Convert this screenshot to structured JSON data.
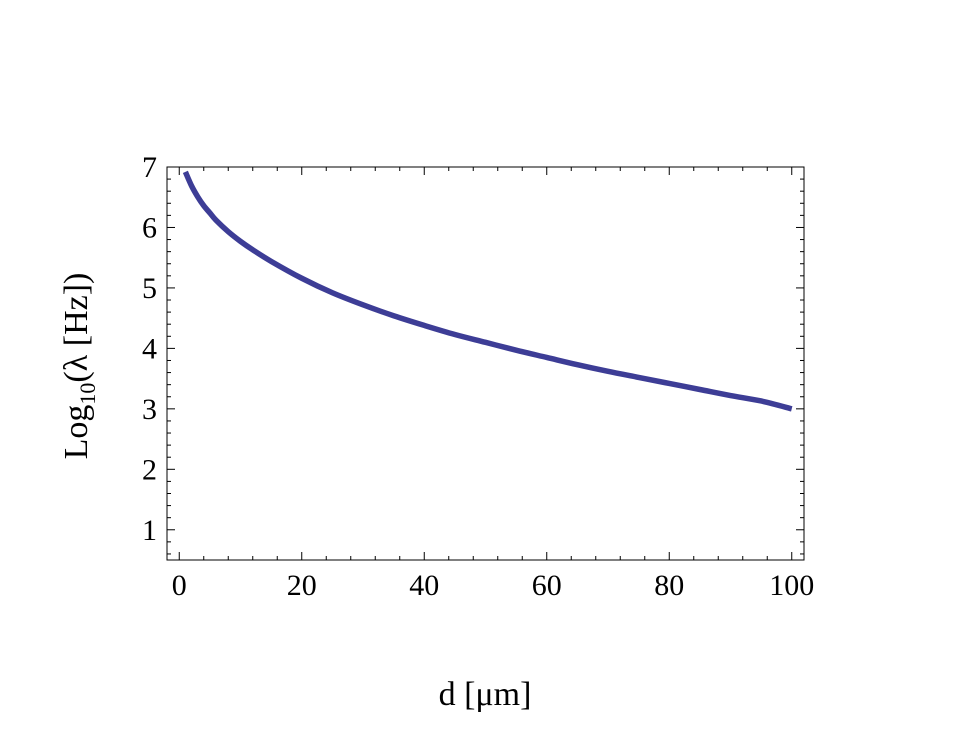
{
  "chart_data": {
    "type": "line",
    "title": "",
    "xlabel": "d [μm]",
    "ylabel": {
      "prefix": "Log",
      "subscript": "10",
      "suffix": "(λ [Hz])"
    },
    "xlim": [
      -2,
      102
    ],
    "ylim": [
      0.5,
      7
    ],
    "x_ticks": [
      0,
      20,
      40,
      60,
      80,
      100
    ],
    "x_tick_labels": [
      "0",
      "20",
      "40",
      "60",
      "80",
      "100"
    ],
    "y_ticks": [
      1,
      2,
      3,
      4,
      5,
      6,
      7
    ],
    "y_tick_labels": [
      "1",
      "2",
      "3",
      "4",
      "5",
      "6",
      "7"
    ],
    "grid": false,
    "frame": true,
    "series": [
      {
        "color": "#3d3d96",
        "x": [
          1,
          2,
          3,
          4,
          5,
          6,
          8,
          10,
          12,
          15,
          20,
          25,
          30,
          35,
          40,
          45,
          50,
          55,
          60,
          65,
          70,
          75,
          80,
          85,
          90,
          95,
          100
        ],
        "y": [
          6.92,
          6.69,
          6.51,
          6.36,
          6.24,
          6.12,
          5.93,
          5.77,
          5.63,
          5.44,
          5.16,
          4.92,
          4.72,
          4.54,
          4.38,
          4.23,
          4.1,
          3.97,
          3.85,
          3.73,
          3.62,
          3.52,
          3.42,
          3.32,
          3.22,
          3.13,
          3.0
        ]
      }
    ]
  }
}
